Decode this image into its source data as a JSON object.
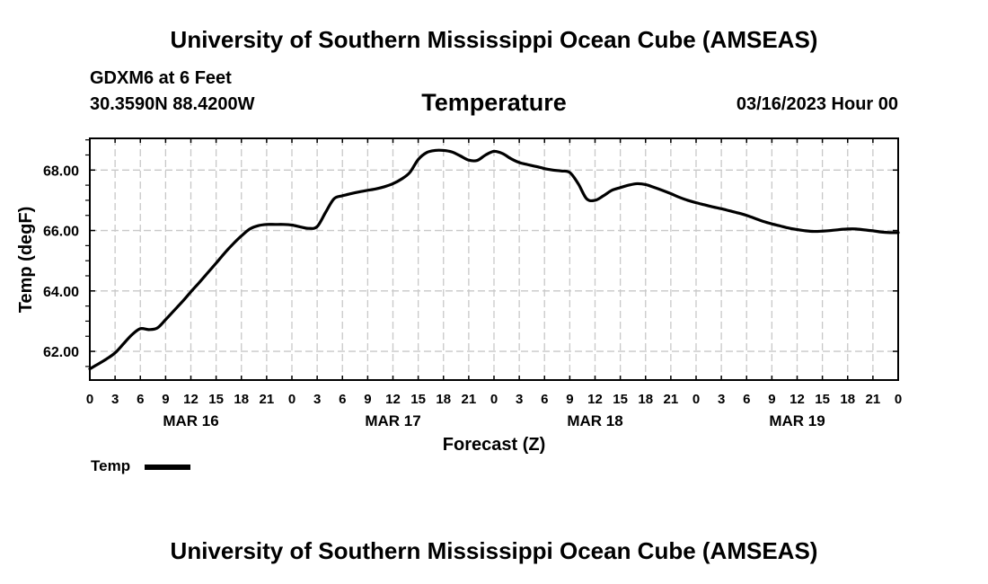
{
  "page": {
    "top_title": "University of Southern Mississippi Ocean Cube (AMSEAS)",
    "bottom_title": "University of Southern Mississippi Ocean Cube (AMSEAS)",
    "station_line": "GDXM6 at 6 Feet",
    "coords_line": "30.3590N  88.4200W",
    "run_time": "03/16/2023 Hour 00"
  },
  "chart_data": {
    "type": "line",
    "title": "Temperature",
    "xlabel": "Forecast (Z)",
    "ylabel": "Temp (degF)",
    "xlim": [
      0,
      96
    ],
    "ylim": [
      61.05,
      69.05
    ],
    "grid": true,
    "x_ticks": [
      0,
      3,
      6,
      9,
      12,
      15,
      18,
      21,
      24,
      27,
      30,
      33,
      36,
      39,
      42,
      45,
      48,
      51,
      54,
      57,
      60,
      63,
      66,
      69,
      72,
      75,
      78,
      81,
      84,
      87,
      90,
      93,
      96
    ],
    "x_tick_labels": [
      "0",
      "3",
      "6",
      "9",
      "12",
      "15",
      "18",
      "21",
      "0",
      "3",
      "6",
      "9",
      "12",
      "15",
      "18",
      "21",
      "0",
      "3",
      "6",
      "9",
      "12",
      "15",
      "18",
      "21",
      "0",
      "3",
      "6",
      "9",
      "12",
      "15",
      "18",
      "21",
      "0"
    ],
    "date_labels": [
      {
        "x": 12,
        "text": "MAR 16"
      },
      {
        "x": 36,
        "text": "MAR 17"
      },
      {
        "x": 60,
        "text": "MAR 18"
      },
      {
        "x": 84,
        "text": "MAR 19"
      }
    ],
    "y_ticks": [
      62,
      64,
      66,
      68
    ],
    "y_tick_labels": [
      "62.00",
      "64.00",
      "66.00",
      "68.00"
    ],
    "legend": {
      "label": "Temp",
      "position": "bottom-left"
    },
    "series": [
      {
        "name": "Temp",
        "color": "#000000",
        "x": [
          0,
          1,
          2,
          3,
          4,
          5,
          6,
          7,
          8,
          9,
          10,
          11,
          12,
          13,
          14,
          15,
          16,
          17,
          18,
          19,
          20,
          21,
          22,
          23,
          24,
          25,
          26,
          27,
          28,
          29,
          30,
          31,
          32,
          33,
          34,
          35,
          36,
          37,
          38,
          39,
          40,
          41,
          42,
          43,
          44,
          45,
          46,
          47,
          48,
          49,
          50,
          51,
          52,
          53,
          54,
          55,
          56,
          57,
          58,
          59,
          60,
          61,
          62,
          63,
          64,
          65,
          66,
          67,
          68,
          69,
          70,
          71,
          72,
          73,
          74,
          75,
          76,
          77,
          78,
          79,
          80,
          81,
          82,
          83,
          84,
          85,
          86,
          87,
          88,
          89,
          90,
          91,
          92,
          93,
          94,
          95,
          96
        ],
        "values": [
          61.42,
          61.58,
          61.75,
          61.95,
          62.25,
          62.55,
          62.75,
          62.72,
          62.77,
          63.05,
          63.35,
          63.65,
          63.97,
          64.28,
          64.6,
          64.92,
          65.25,
          65.55,
          65.82,
          66.05,
          66.16,
          66.2,
          66.2,
          66.2,
          66.18,
          66.12,
          66.07,
          66.13,
          66.6,
          67.05,
          67.15,
          67.22,
          67.28,
          67.33,
          67.38,
          67.45,
          67.55,
          67.7,
          67.92,
          68.35,
          68.58,
          68.65,
          68.65,
          68.6,
          68.47,
          68.33,
          68.32,
          68.5,
          68.62,
          68.55,
          68.38,
          68.25,
          68.18,
          68.12,
          68.05,
          68.0,
          67.97,
          67.92,
          67.55,
          67.05,
          67.0,
          67.15,
          67.33,
          67.42,
          67.5,
          67.55,
          67.52,
          67.43,
          67.33,
          67.22,
          67.1,
          67.0,
          66.92,
          66.85,
          66.78,
          66.72,
          66.65,
          66.58,
          66.5,
          66.4,
          66.3,
          66.22,
          66.15,
          66.08,
          66.03,
          65.99,
          65.97,
          65.98,
          66.0,
          66.03,
          66.05,
          66.05,
          66.02,
          65.99,
          65.95,
          65.93,
          65.93
        ]
      }
    ]
  }
}
